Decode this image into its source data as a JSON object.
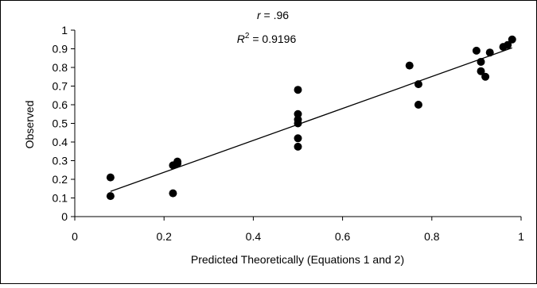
{
  "chart_data": {
    "type": "scatter",
    "title": "",
    "annotations": {
      "r_label": "r",
      "r_value": " = .96",
      "r2_label": "R",
      "r2_sup": "2",
      "r2_value": " = 0.9196"
    },
    "xlabel": "Predicted Theoretically (Equations 1 and 2)",
    "ylabel": "Observed",
    "xlim": [
      0,
      1
    ],
    "ylim": [
      0,
      1
    ],
    "x_ticks": [
      "0",
      "0.2",
      "0.4",
      "0.6",
      "0.8",
      "1"
    ],
    "y_ticks": [
      "0",
      "0.1",
      "0.2",
      "0.3",
      "0.4",
      "0.5",
      "0.6",
      "0.7",
      "0.8",
      "0.9",
      "1"
    ],
    "grid": false,
    "legend": "none",
    "series": [
      {
        "points": [
          {
            "x": 0.08,
            "y": 0.21
          },
          {
            "x": 0.08,
            "y": 0.11
          },
          {
            "x": 0.22,
            "y": 0.125
          },
          {
            "x": 0.22,
            "y": 0.275
          },
          {
            "x": 0.23,
            "y": 0.285
          },
          {
            "x": 0.23,
            "y": 0.295
          },
          {
            "x": 0.5,
            "y": 0.68
          },
          {
            "x": 0.5,
            "y": 0.55
          },
          {
            "x": 0.5,
            "y": 0.52
          },
          {
            "x": 0.5,
            "y": 0.5
          },
          {
            "x": 0.5,
            "y": 0.42
          },
          {
            "x": 0.5,
            "y": 0.375
          },
          {
            "x": 0.75,
            "y": 0.81
          },
          {
            "x": 0.77,
            "y": 0.71
          },
          {
            "x": 0.77,
            "y": 0.6
          },
          {
            "x": 0.9,
            "y": 0.89
          },
          {
            "x": 0.91,
            "y": 0.83
          },
          {
            "x": 0.91,
            "y": 0.78
          },
          {
            "x": 0.92,
            "y": 0.75
          },
          {
            "x": 0.93,
            "y": 0.88
          },
          {
            "x": 0.96,
            "y": 0.91
          },
          {
            "x": 0.97,
            "y": 0.92
          },
          {
            "x": 0.98,
            "y": 0.95
          }
        ]
      }
    ],
    "trendline": {
      "type": "linear",
      "x": [
        0.08,
        0.98
      ],
      "y": [
        0.135,
        0.905
      ]
    },
    "colors": {
      "marker": "#000000",
      "line": "#000000",
      "axis": "#000000"
    }
  }
}
